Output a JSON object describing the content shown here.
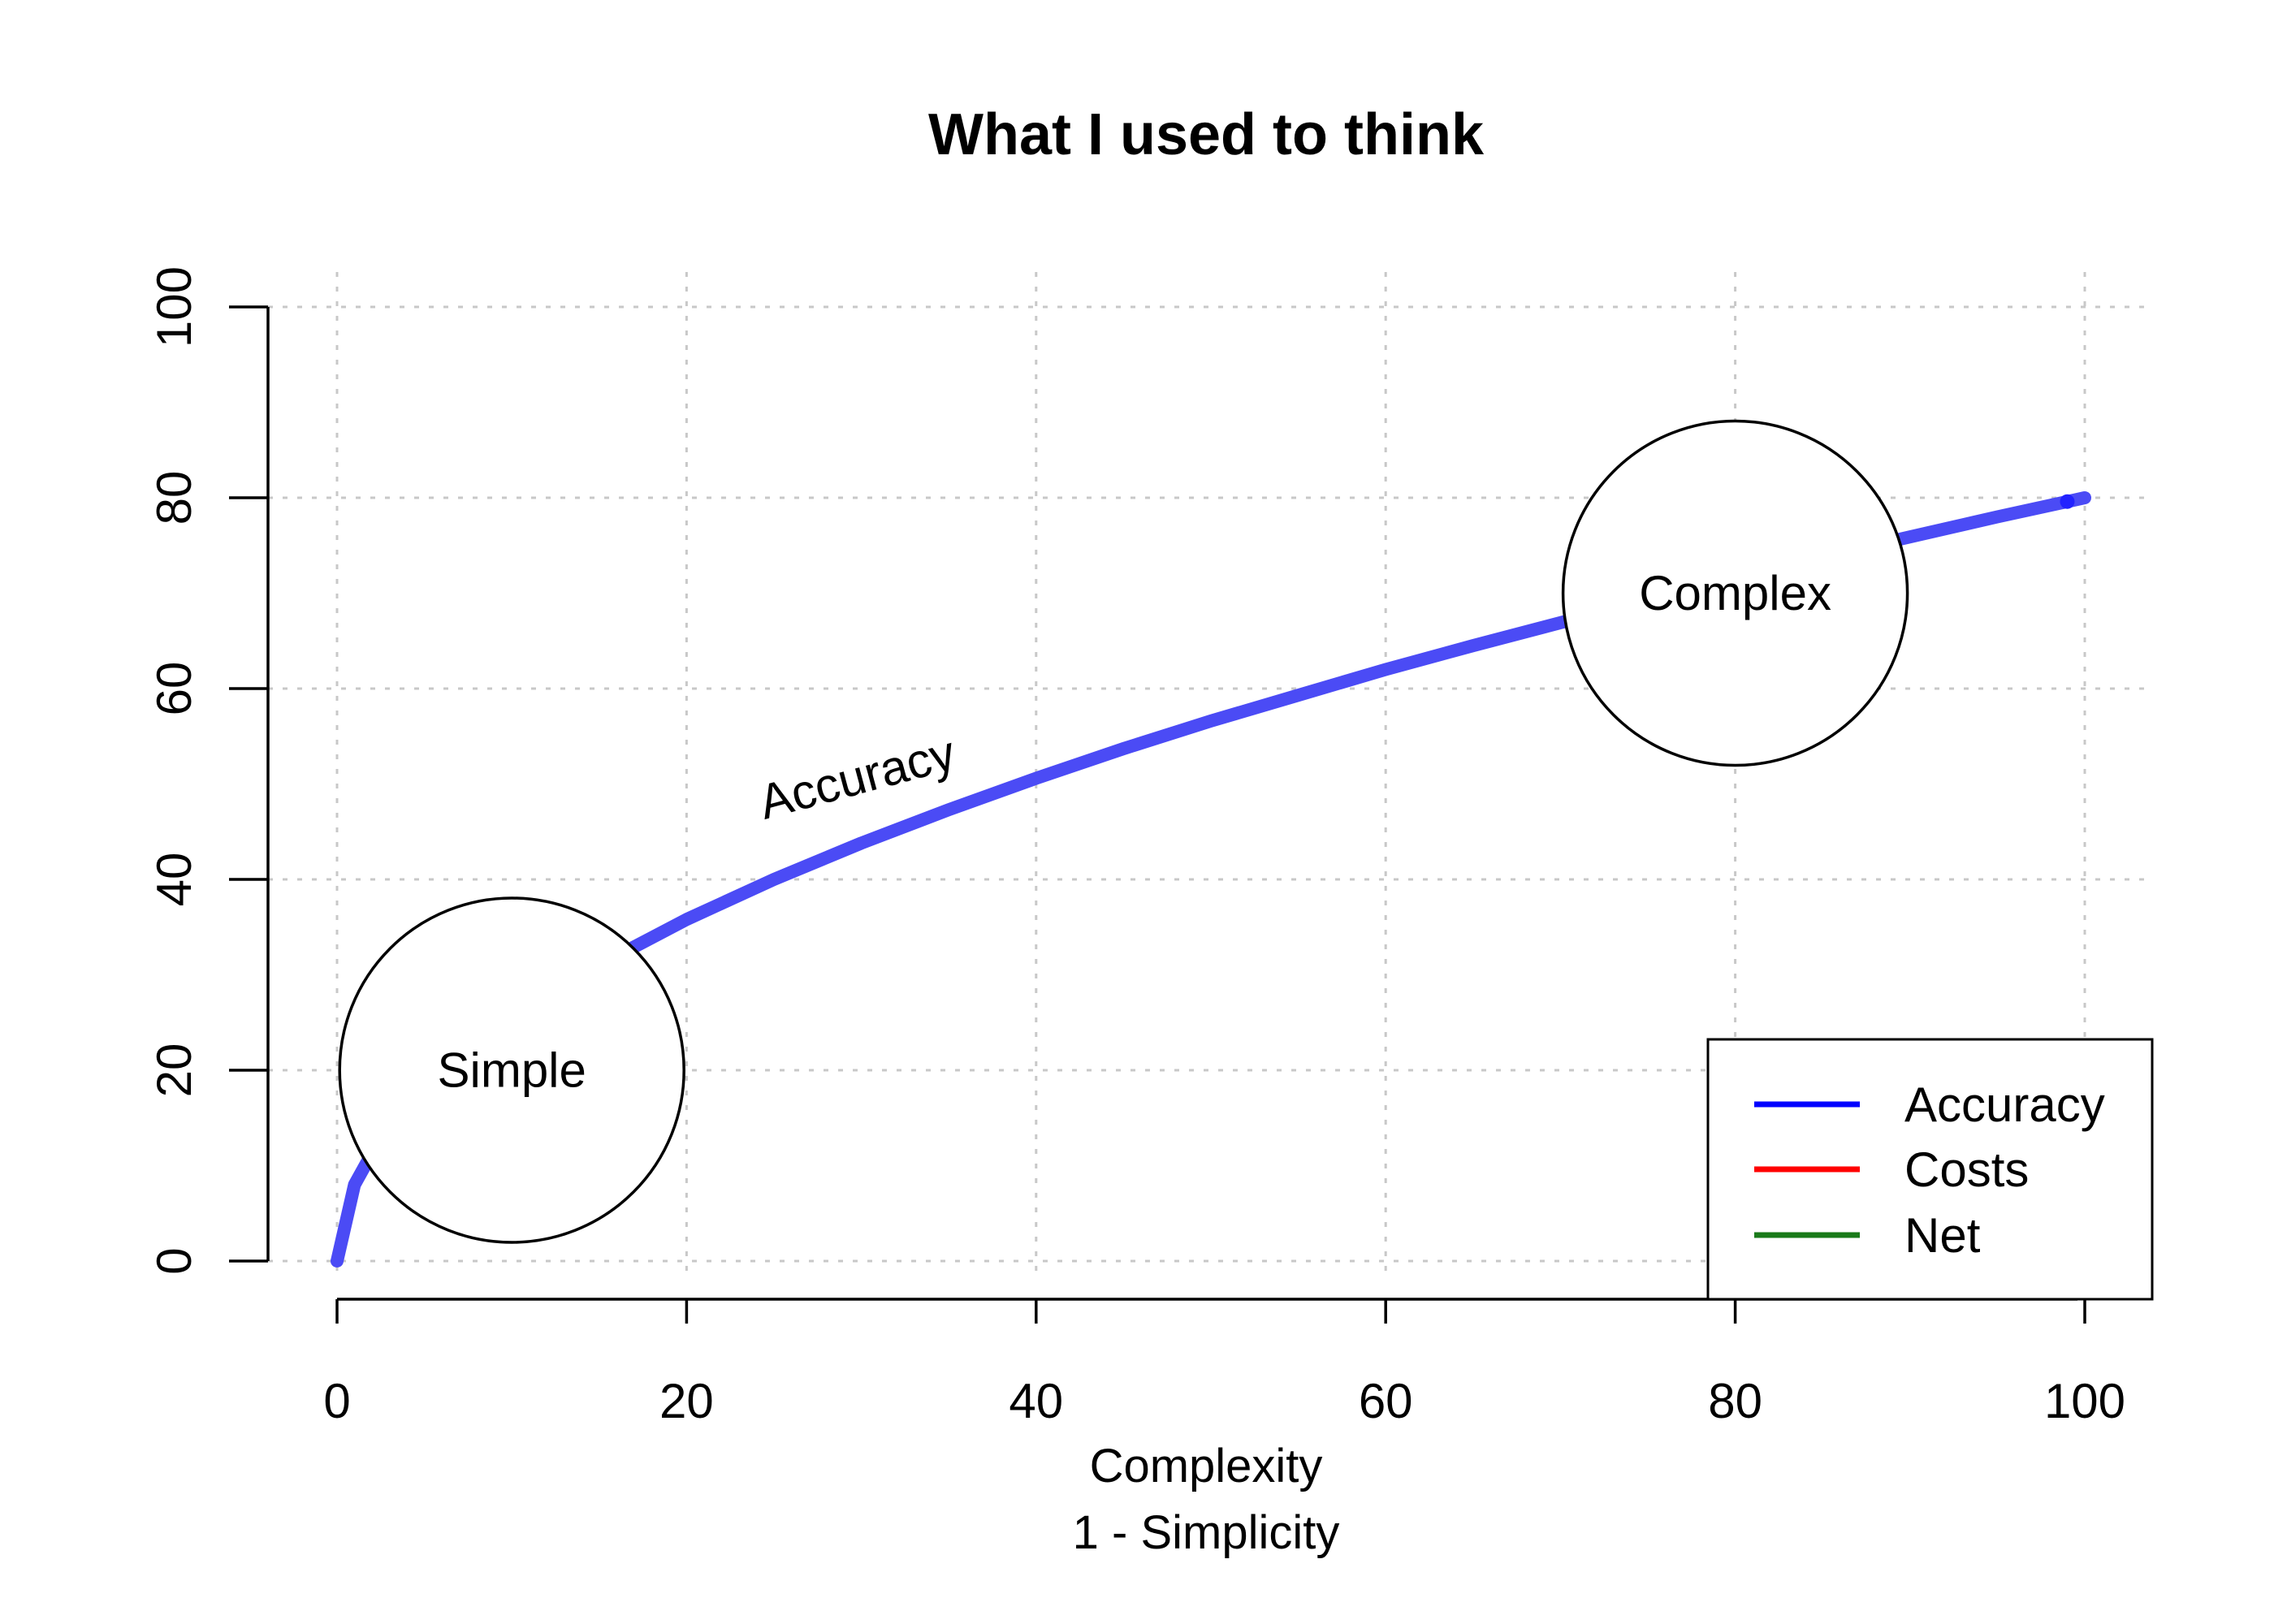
{
  "chart_data": {
    "type": "line",
    "title": "What I used to think",
    "xlabel": "Complexity",
    "xlabel_line2": "1 - Simplicity",
    "ylabel": "",
    "xlim": [
      0,
      100
    ],
    "ylim": [
      0,
      100
    ],
    "x_ticks": [
      0,
      20,
      40,
      60,
      80,
      100
    ],
    "y_ticks": [
      0,
      20,
      40,
      60,
      80,
      100
    ],
    "grid": true,
    "legend_position": "bottom-right",
    "legend": [
      {
        "label": "Accuracy",
        "color": "#0000ff"
      },
      {
        "label": "Costs",
        "color": "#ff0000"
      },
      {
        "label": "Net",
        "color": "#1a7a1a"
      }
    ],
    "series": [
      {
        "name": "Accuracy",
        "color": "#4b4bf5",
        "x": [
          0,
          1,
          2,
          5,
          10,
          15,
          20,
          25,
          30,
          35,
          40,
          45,
          50,
          55,
          60,
          65,
          70,
          75,
          80,
          85,
          90,
          95,
          100
        ],
        "y": [
          0,
          8,
          11.3,
          17.9,
          25.3,
          31.0,
          35.8,
          40.0,
          43.8,
          47.3,
          50.6,
          53.7,
          56.6,
          59.3,
          62.0,
          64.5,
          66.9,
          69.3,
          71.6,
          73.8,
          75.9,
          78.0,
          80.0
        ]
      }
    ],
    "annotations": [
      {
        "kind": "circle",
        "label": "Simple",
        "x": 10,
        "y": 20
      },
      {
        "kind": "circle",
        "label": "Complex",
        "x": 80,
        "y": 70
      },
      {
        "kind": "text",
        "label": "Accuracy",
        "x": 30,
        "y": 49,
        "angle": -15
      }
    ]
  }
}
